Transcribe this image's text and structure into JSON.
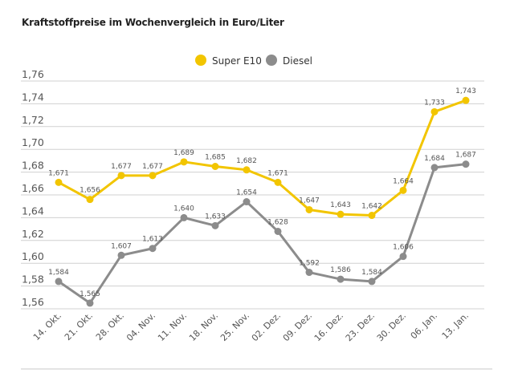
{
  "chart_data": {
    "type": "line",
    "title": "Kraftstoffpreise im Wochenvergleich in Euro/Liter",
    "xlabel": "",
    "ylabel": "",
    "categories": [
      "14. Okt.",
      "21. Okt.",
      "28. Okt.",
      "04. Nov.",
      "11. Nov.",
      "18. Nov.",
      "25. Nov.",
      "02. Dez.",
      "09. Dez.",
      "16. Dez.",
      "23. Dez.",
      "30. Dez.",
      "06. Jan.",
      "13. Jan."
    ],
    "ylim": [
      1.56,
      1.76
    ],
    "yticks": [
      "1,56",
      "1,58",
      "1,60",
      "1,62",
      "1,64",
      "1,66",
      "1,68",
      "1,70",
      "1,72",
      "1,74",
      "1,76"
    ],
    "grid": true,
    "legend_position": "top-center",
    "series": [
      {
        "name": "Super E10",
        "color": "#f2c500",
        "values": [
          1.671,
          1.656,
          1.677,
          1.677,
          1.689,
          1.685,
          1.682,
          1.671,
          1.647,
          1.643,
          1.642,
          1.664,
          1.733,
          1.743
        ],
        "labels": [
          "1,671",
          "1,656",
          "1,677",
          "1,677",
          "1,689",
          "1,685",
          "1,682",
          "1,671",
          "1,647",
          "1,643",
          "1,642",
          "1,664",
          "1,733",
          "1,743"
        ]
      },
      {
        "name": "Diesel",
        "color": "#8c8c8c",
        "values": [
          1.584,
          1.565,
          1.607,
          1.613,
          1.64,
          1.633,
          1.654,
          1.628,
          1.592,
          1.586,
          1.584,
          1.606,
          1.684,
          1.687
        ],
        "labels": [
          "1,584",
          "1,565",
          "1,607",
          "1,613",
          "1,640",
          "1,633",
          "1,654",
          "1,628",
          "1,592",
          "1,586",
          "1,584",
          "1,606",
          "1,684",
          "1,687"
        ]
      }
    ]
  }
}
